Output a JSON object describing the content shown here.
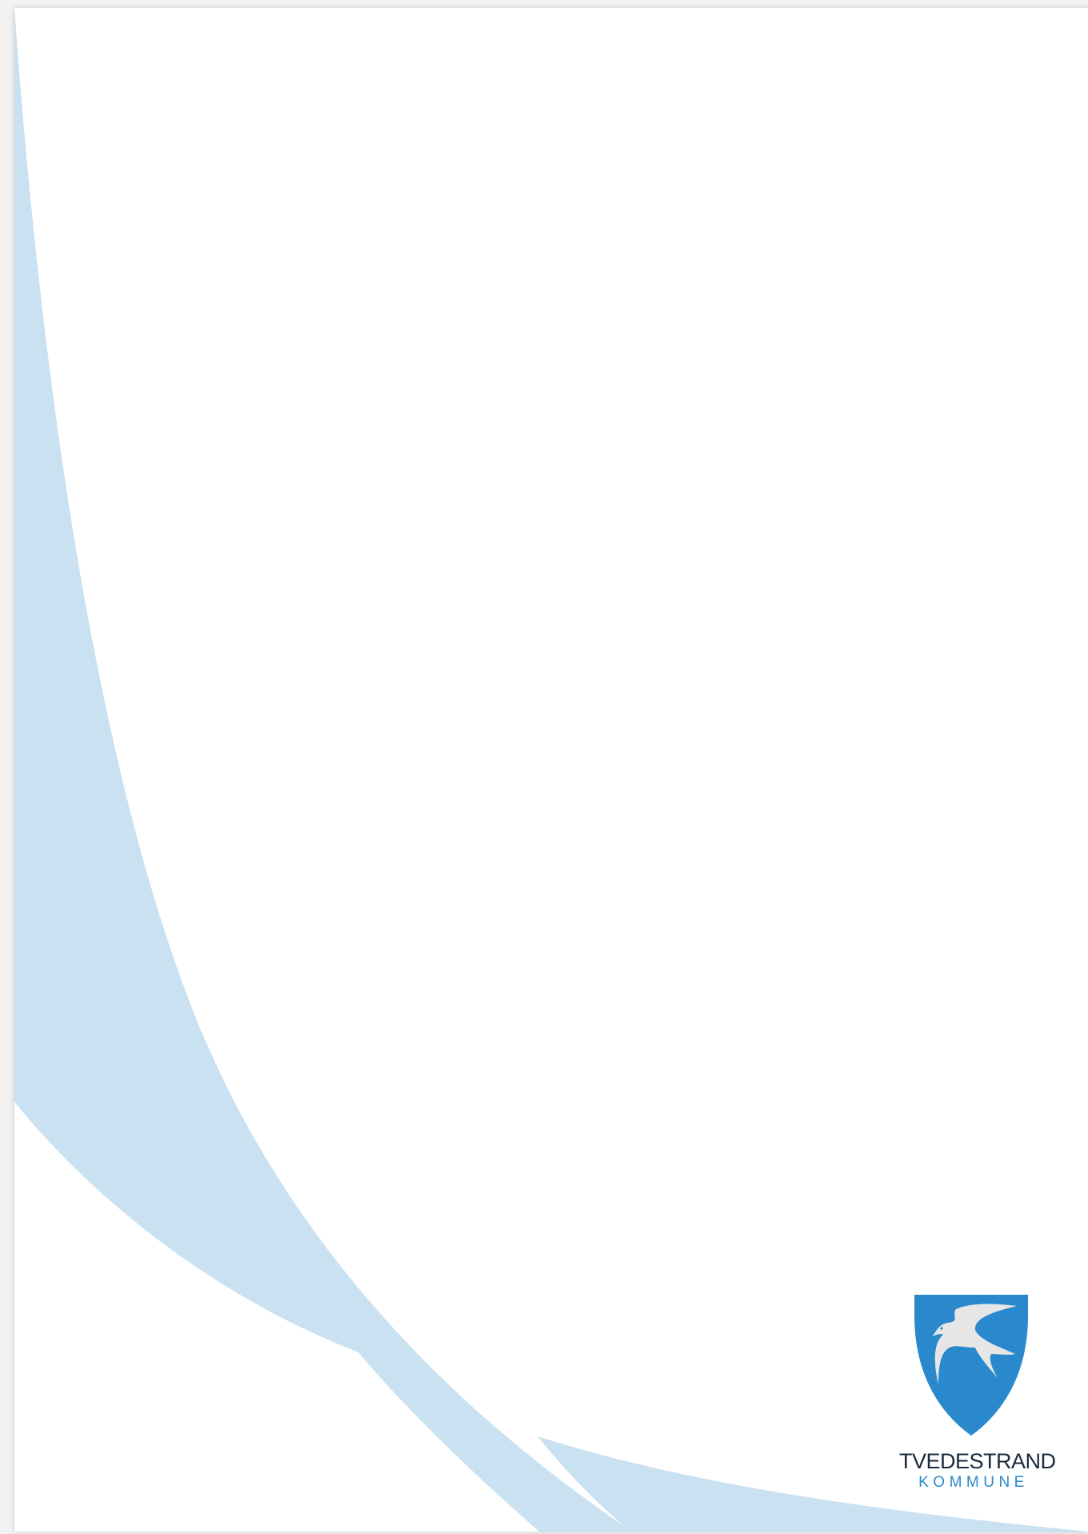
{
  "logo": {
    "name": "TVEDESTRAND",
    "subtitle": "KOMMUNE",
    "emblem_icon": "swallow-shield-icon"
  },
  "colors": {
    "page_background": "#ffffff",
    "viewer_background": "#f2f2f2",
    "decor_curve": "#cae1f1",
    "shield_blue": "#2a89cc",
    "bird_white": "#e6e6e6",
    "name_text": "#1b2a3c",
    "subtitle_text": "#2a89cc"
  }
}
